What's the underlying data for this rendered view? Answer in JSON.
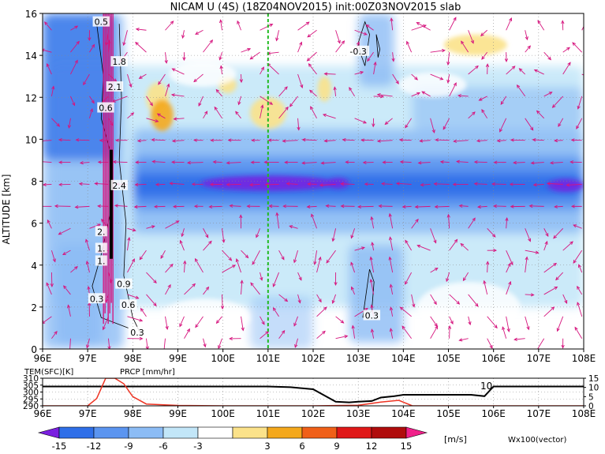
{
  "title": "NICAM U (4S) (18Z04NOV2015) init:00Z03NOV2015 slab",
  "colors": {
    "contour_neg_strong": "#7a1fe0",
    "contour_neg_12": "#2f6fe8",
    "contour_neg_9": "#5b95f0",
    "contour_neg_6": "#8cbcf5",
    "contour_neg_3": "#c2e6f8",
    "contour_zero": "#ffffff",
    "contour_pos_3": "#fbe28a",
    "contour_pos_6": "#f4a81c",
    "contour_pos_9": "#f06018",
    "contour_pos_12": "#e01818",
    "contour_pos_15": "#b00c0c",
    "contour_pos_strong": "#f0208a",
    "vector": "#d6157e",
    "marker_line": "#22bb22",
    "tem_line": "#000000",
    "prcp_line": "#ee3322"
  },
  "chart_data": [
    {
      "type": "heatmap",
      "title": "NICAM U (4S) (18Z04NOV2015) init:00Z03NOV2015 slab",
      "ylabel": "ALTITUDE [km]",
      "xlabel": "",
      "xlim": [
        96,
        108
      ],
      "ylim": [
        0,
        16
      ],
      "x_ticks": [
        "96E",
        "97E",
        "98E",
        "99E",
        "100E",
        "101E",
        "102E",
        "103E",
        "104E",
        "105E",
        "106E",
        "107E",
        "108E"
      ],
      "y_ticks": [
        "0",
        "2",
        "4",
        "6",
        "8",
        "10",
        "12",
        "14",
        "16"
      ],
      "grid": true,
      "marker_longitude": 101,
      "vector_label": "Wx100(vector)",
      "contour_labels": [
        {
          "text": "0.5",
          "lon": 97.3,
          "alt": 15.6
        },
        {
          "text": "1.8",
          "lon": 97.7,
          "alt": 13.7
        },
        {
          "text": "2.1",
          "lon": 97.6,
          "alt": 12.5
        },
        {
          "text": "0.6",
          "lon": 97.4,
          "alt": 11.5
        },
        {
          "text": "2.4",
          "lon": 97.7,
          "alt": 7.8
        },
        {
          "text": "2.",
          "lon": 97.3,
          "alt": 5.6
        },
        {
          "text": "1.",
          "lon": 97.3,
          "alt": 4.8
        },
        {
          "text": "1.",
          "lon": 97.3,
          "alt": 4.2
        },
        {
          "text": "0.9",
          "lon": 97.8,
          "alt": 3.1
        },
        {
          "text": "0.3",
          "lon": 97.2,
          "alt": 2.4
        },
        {
          "text": "0.6",
          "lon": 97.9,
          "alt": 2.1
        },
        {
          "text": "0.3",
          "lon": 98.1,
          "alt": 0.8
        },
        {
          "text": "-0.3",
          "lon": 103.0,
          "alt": 14.2
        },
        {
          "text": "0.3",
          "lon": 103.3,
          "alt": 1.6
        }
      ],
      "jet_core": {
        "altitude_km": 7.8,
        "value_ms": -15,
        "lon_range": [
          97,
          108
        ]
      }
    },
    {
      "type": "line",
      "xlim": [
        96,
        108
      ],
      "x_ticks": [
        "96E",
        "97E",
        "98E",
        "99E",
        "100E",
        "101E",
        "102E",
        "103E",
        "104E",
        "105E",
        "106E",
        "107E",
        "108E"
      ],
      "left_axis": {
        "label": "TEM(SFC)[K]",
        "ticks": [
          "310",
          "305",
          "300",
          "295",
          "290"
        ],
        "range": [
          290,
          310
        ]
      },
      "right_axis": {
        "label": "PRCP [mm/hr]",
        "ticks": [
          "15",
          "10",
          "5",
          "0"
        ],
        "range": [
          0,
          15
        ]
      },
      "annotation": "10",
      "series": [
        {
          "name": "TEM(SFC)[K]",
          "x": [
            96,
            97,
            97.5,
            98,
            99,
            100,
            101,
            101.5,
            102,
            102.5,
            102.8,
            103,
            103.3,
            103.5,
            103.8,
            104,
            104.5,
            105,
            105.5,
            105.8,
            106,
            107,
            108
          ],
          "y": [
            304,
            304,
            304,
            304,
            304,
            304,
            304,
            303.5,
            302,
            293,
            292.5,
            293,
            293.5,
            296,
            297,
            298,
            298,
            298,
            298,
            297,
            304,
            304,
            304
          ]
        },
        {
          "name": "PRCP [mm/hr]",
          "x": [
            96,
            97,
            97.2,
            97.4,
            97.6,
            97.8,
            98.0,
            98.3,
            99,
            100,
            101,
            102,
            103,
            103.5,
            103.9,
            104.2,
            105,
            108
          ],
          "y": [
            0,
            0,
            4,
            15,
            15,
            12,
            5,
            1,
            0.2,
            0,
            0,
            0,
            0.3,
            2,
            3,
            0,
            0,
            0
          ]
        }
      ]
    },
    {
      "type": "colorbar",
      "ticks": [
        "-15",
        "-12",
        "-9",
        "-6",
        "-3",
        "3",
        "6",
        "9",
        "12",
        "15"
      ],
      "unit": "[m/s]"
    }
  ]
}
